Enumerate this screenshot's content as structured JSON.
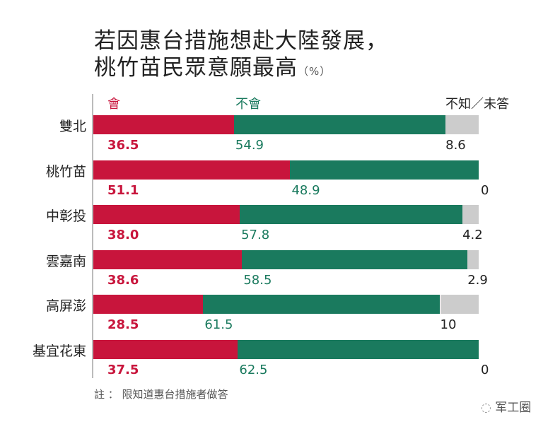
{
  "chart_data": {
    "type": "bar",
    "orientation": "horizontal",
    "stacked": true,
    "title": "若因惠台措施想赴大陸發展，",
    "title_line2": "桃竹苗民眾意願最高",
    "unit": "（%）",
    "categories": [
      "雙北",
      "桃竹苗",
      "中彰投",
      "雲嘉南",
      "高屏澎",
      "基宜花東"
    ],
    "series": [
      {
        "name": "會",
        "color": "#c8153c",
        "values": [
          36.5,
          51.1,
          38.0,
          38.6,
          28.5,
          37.5
        ],
        "labels": [
          "36.5",
          "51.1",
          "38.0",
          "38.6",
          "28.5",
          "37.5"
        ]
      },
      {
        "name": "不會",
        "color": "#1a7a5e",
        "values": [
          54.9,
          48.9,
          57.8,
          58.5,
          61.5,
          62.5
        ],
        "labels": [
          "54.9",
          "48.9",
          "57.8",
          "58.5",
          "61.5",
          "62.5"
        ]
      },
      {
        "name": "不知／未答",
        "color": "#cccccc",
        "values": [
          8.6,
          0,
          4.2,
          2.9,
          10,
          0
        ],
        "labels": [
          "8.6",
          "0",
          "4.2",
          "2.9",
          "10",
          "0"
        ]
      }
    ],
    "xlim": [
      0,
      100
    ],
    "grid": false,
    "legend": "top"
  },
  "note": "註 ： 限知道惠台措施者做答",
  "watermark": "军工圈"
}
